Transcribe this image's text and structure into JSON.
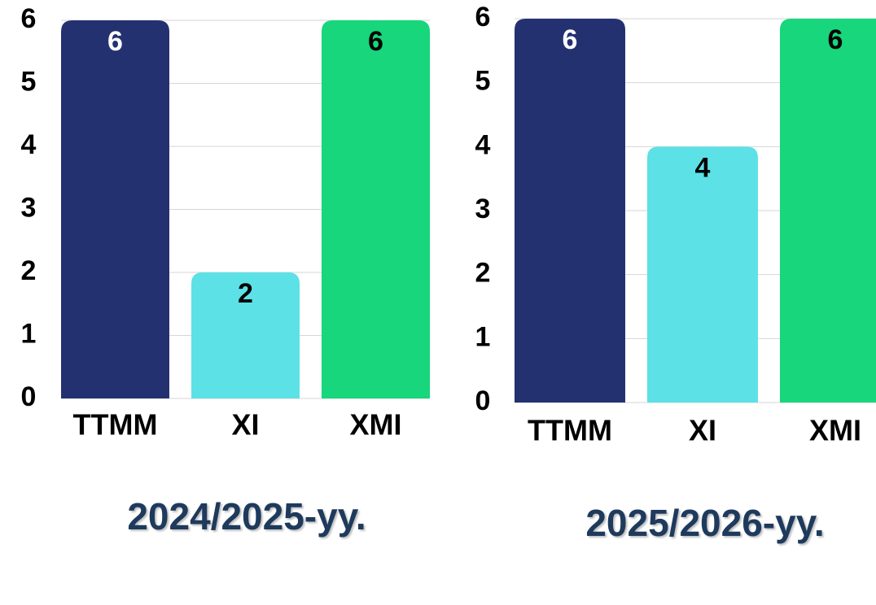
{
  "chart_data": [
    {
      "type": "bar",
      "title": "2024/2025-yy.",
      "categories": [
        "TTMM",
        "XI",
        "XMI"
      ],
      "values": [
        6,
        2,
        6
      ],
      "colors": [
        "#243171",
        "#5ce1e6",
        "#17d67b"
      ],
      "ylim": [
        0,
        6
      ],
      "yticks": [
        0,
        1,
        2,
        3,
        4,
        5,
        6
      ],
      "grid": true
    },
    {
      "type": "bar",
      "title": "2025/2026-yy.",
      "categories": [
        "TTMM",
        "XI",
        "XMI"
      ],
      "values": [
        6,
        4,
        6
      ],
      "colors": [
        "#243171",
        "#5ce1e6",
        "#17d67b"
      ],
      "ylim": [
        0,
        6
      ],
      "yticks": [
        0,
        1,
        2,
        3,
        4,
        5,
        6
      ],
      "grid": true
    }
  ]
}
